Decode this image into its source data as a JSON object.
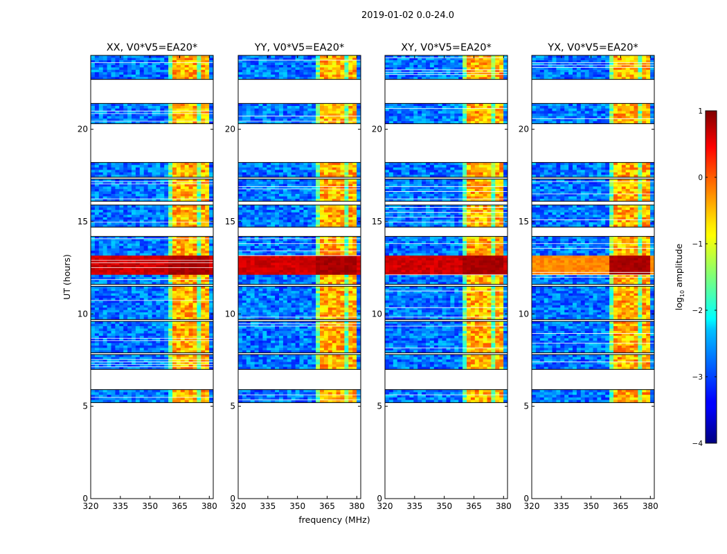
{
  "chart_data": {
    "type": "heatmap",
    "suptitle": "2019-01-02 0.0-24.0",
    "xlabel": "frequency (MHz)",
    "ylabel": "UT (hours)",
    "xlim": [
      320,
      382
    ],
    "ylim": [
      0,
      24
    ],
    "xticks": [
      "320",
      "335",
      "350",
      "365",
      "380"
    ],
    "xtick_values": [
      320,
      335,
      350,
      365,
      380
    ],
    "yticks": [
      "0",
      "5",
      "10",
      "15",
      "20"
    ],
    "ytick_values": [
      0,
      5,
      10,
      15,
      20
    ],
    "colorbar": {
      "label_prefix": "log",
      "label_sub": "10",
      "label_suffix": " amplitude",
      "range": [
        -4,
        1
      ],
      "ticks": [
        "1",
        "0",
        "−1",
        "−2",
        "−3",
        "−4"
      ],
      "tick_values": [
        1,
        0,
        -1,
        -2,
        -3,
        -4
      ],
      "colormap": "jet"
    },
    "panels": [
      {
        "title": "XX, V0*V5=EA20*",
        "bright_rfi_band": true
      },
      {
        "title": "YY, V0*V5=EA20*",
        "bright_rfi_band": true
      },
      {
        "title": "XY, V0*V5=EA20*",
        "bright_rfi_band": true
      },
      {
        "title": "YX, V0*V5=EA20*",
        "bright_rfi_band": true
      }
    ],
    "data_time_ranges_hours": [
      [
        5.2,
        5.9
      ],
      [
        7.0,
        7.8
      ],
      [
        7.9,
        9.6
      ],
      [
        9.7,
        11.5
      ],
      [
        11.6,
        14.2
      ],
      [
        14.7,
        15.9
      ],
      [
        16.1,
        17.3
      ],
      [
        17.4,
        18.2
      ],
      [
        20.3,
        21.4
      ],
      [
        22.7,
        24.0
      ]
    ],
    "rfi_band_mhz": [
      360,
      380
    ],
    "bright_time_band_hours": [
      12.1,
      13.1
    ],
    "description_level": {
      "background_log_amplitude": -2.8,
      "rfi_log_amplitude": -0.5,
      "peak_log_amplitude": 0.8
    }
  }
}
